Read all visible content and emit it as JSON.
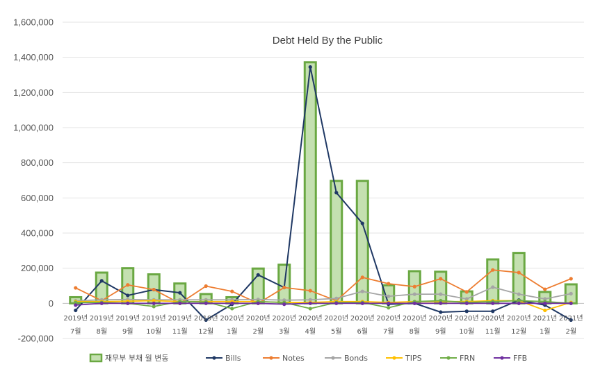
{
  "chart_data": {
    "type": "bar",
    "title": "Debt Held By the Public",
    "xlabel": "",
    "ylabel": "",
    "ylim": [
      -200000,
      1600000
    ],
    "yticks": [
      -200000,
      0,
      200000,
      400000,
      600000,
      800000,
      1000000,
      1200000,
      1400000,
      1600000
    ],
    "ytick_labels": [
      "-200,000",
      "0",
      "200,000",
      "400,000",
      "600,000",
      "800,000",
      "1,000,000",
      "1,200,000",
      "1,400,000",
      "1,600,000"
    ],
    "categories": [
      [
        "2019년",
        "7월"
      ],
      [
        "2019년",
        "8월"
      ],
      [
        "2019년",
        "9월"
      ],
      [
        "2019년",
        "10월"
      ],
      [
        "2019년",
        "11월"
      ],
      [
        "2019년",
        "12월"
      ],
      [
        "2020년",
        "1월"
      ],
      [
        "2020년",
        "2월"
      ],
      [
        "2020년",
        "3월"
      ],
      [
        "2020년",
        "4월"
      ],
      [
        "2020년",
        "5월"
      ],
      [
        "2020년",
        "6월"
      ],
      [
        "2020년",
        "7월"
      ],
      [
        "2020년",
        "8월"
      ],
      [
        "2020년",
        "9월"
      ],
      [
        "2020년",
        "10월"
      ],
      [
        "2020년",
        "11월"
      ],
      [
        "2020년",
        "12월"
      ],
      [
        "2021년",
        "1월"
      ],
      [
        "2021년",
        "2월"
      ]
    ],
    "grid": true,
    "legend_position": "bottom",
    "bar_series": {
      "name": "재무부 부채 월 변동",
      "color": "#c4e0b0",
      "edge_color": "#6aa842",
      "values": [
        35000,
        175000,
        200000,
        165000,
        113000,
        53000,
        35000,
        198000,
        220000,
        1372000,
        697000,
        697000,
        103000,
        183000,
        180000,
        68000,
        250000,
        287000,
        65000,
        108000
      ]
    },
    "series": [
      {
        "name": "Bills",
        "color": "#1f3864",
        "values": [
          -40000,
          128000,
          45000,
          78000,
          60000,
          -95000,
          -5000,
          162000,
          90000,
          1345000,
          630000,
          455000,
          -5000,
          0,
          -50000,
          -45000,
          -45000,
          18000,
          -10000,
          -95000
        ]
      },
      {
        "name": "Notes",
        "color": "#ed7d31",
        "values": [
          88000,
          15000,
          105000,
          78000,
          0,
          98000,
          68000,
          0,
          90000,
          72000,
          15000,
          148000,
          112000,
          95000,
          140000,
          65000,
          190000,
          175000,
          80000,
          140000
        ]
      },
      {
        "name": "Bonds",
        "color": "#a5a5a5",
        "values": [
          15000,
          20000,
          22000,
          20000,
          20000,
          20000,
          20000,
          22000,
          18000,
          20000,
          28000,
          68000,
          40000,
          52000,
          52000,
          25000,
          92000,
          52000,
          25000,
          55000
        ]
      },
      {
        "name": "TIPS",
        "color": "#ffc000",
        "values": [
          10000,
          10000,
          12000,
          15000,
          10000,
          10000,
          10000,
          10000,
          5000,
          5000,
          10000,
          10000,
          5000,
          10000,
          10000,
          10000,
          15000,
          15000,
          -40000,
          5000
        ]
      },
      {
        "name": "FRN",
        "color": "#70ad47",
        "values": [
          5000,
          5000,
          0,
          -18000,
          10000,
          8000,
          -30000,
          10000,
          5000,
          -30000,
          5000,
          5000,
          -25000,
          10000,
          15000,
          5000,
          10000,
          15000,
          10000,
          0
        ]
      },
      {
        "name": "FFB",
        "color": "#7030a0",
        "values": [
          -10000,
          0,
          0,
          0,
          0,
          0,
          0,
          0,
          -5000,
          0,
          0,
          0,
          0,
          0,
          0,
          0,
          0,
          0,
          0,
          0
        ]
      }
    ]
  }
}
